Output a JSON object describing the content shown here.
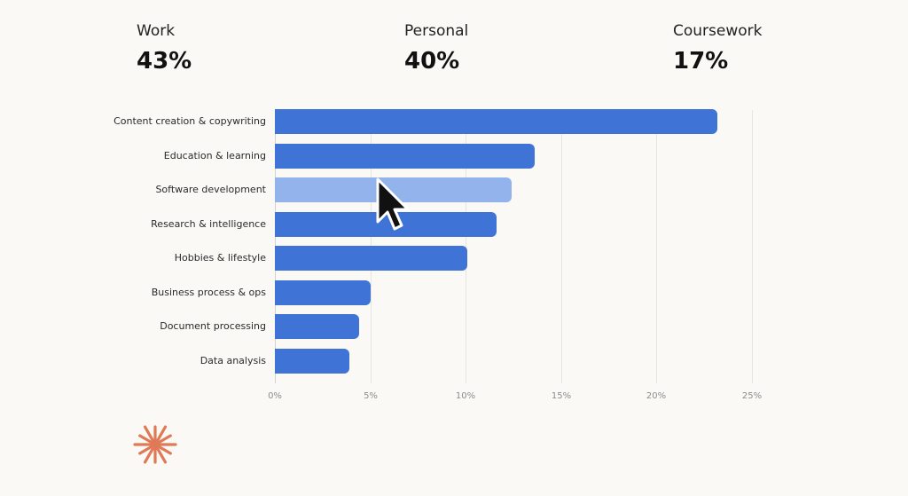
{
  "stats": [
    {
      "label": "Work",
      "value": "43%"
    },
    {
      "label": "Personal",
      "value": "40%"
    },
    {
      "label": "Coursework",
      "value": "17%"
    }
  ],
  "chart_data": {
    "type": "bar",
    "orientation": "horizontal",
    "categories": [
      "Content creation & copywriting",
      "Education & learning",
      "Software development",
      "Research & intelligence",
      "Hobbies & lifestyle",
      "Business process & ops",
      "Document processing",
      "Data analysis"
    ],
    "values": [
      23.2,
      13.6,
      12.4,
      11.6,
      10.1,
      5.0,
      4.4,
      3.9
    ],
    "highlighted_category": "Software development",
    "xticks": [
      "0%",
      "5%",
      "10%",
      "15%",
      "20%",
      "25%"
    ],
    "xlim": [
      0,
      25
    ],
    "grid": "vertical",
    "title": "",
    "xlabel": "",
    "ylabel": ""
  },
  "colors": {
    "bar": "#3f73d6",
    "bar_highlight": "#93b3ec",
    "logo": "#e07a56"
  },
  "icons": {
    "cursor": "mouse-pointer-icon",
    "logo": "starburst-logo-icon"
  }
}
